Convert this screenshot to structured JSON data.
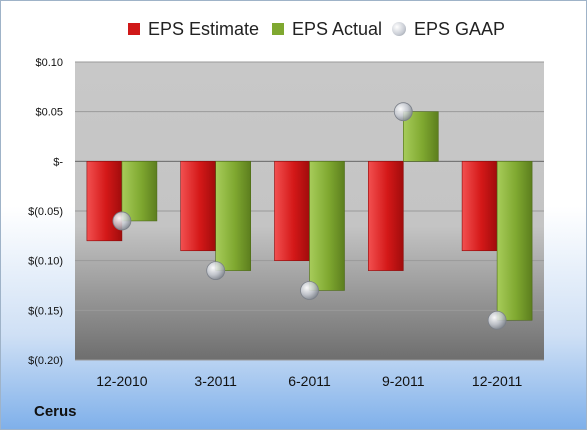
{
  "legend": {
    "estimate": "EPS Estimate",
    "actual": "EPS Actual",
    "gaap": "EPS GAAP"
  },
  "company": "Cerus",
  "colors": {
    "estimate": "#d01818",
    "actual": "#7fa830",
    "gaap": "#c8ccd4"
  },
  "chart_data": {
    "type": "bar",
    "categories": [
      "12-2010",
      "3-2011",
      "6-2011",
      "9-2011",
      "12-2011"
    ],
    "series": [
      {
        "name": "EPS Estimate",
        "values": [
          -0.08,
          -0.09,
          -0.1,
          -0.11,
          -0.09
        ]
      },
      {
        "name": "EPS Actual",
        "values": [
          -0.06,
          -0.11,
          -0.13,
          0.05,
          -0.16
        ]
      },
      {
        "name": "EPS GAAP",
        "values": [
          -0.06,
          -0.11,
          -0.13,
          0.05,
          -0.16
        ]
      }
    ],
    "ylim": [
      -0.2,
      0.1
    ],
    "yticks": [
      0.1,
      0.05,
      0,
      -0.05,
      -0.1,
      -0.15,
      -0.2
    ],
    "ytick_labels": [
      "$0.10",
      "$0.05",
      "$-",
      "$(0.05)",
      "$(0.10)",
      "$(0.15)",
      "$(0.20)"
    ],
    "grid": true,
    "legend_position": "top"
  }
}
